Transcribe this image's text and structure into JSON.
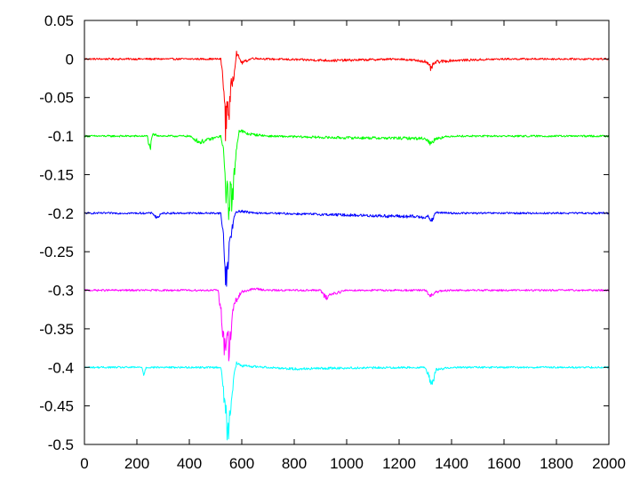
{
  "chart_data": {
    "type": "line",
    "title": "",
    "xlabel": "",
    "ylabel": "",
    "xlim": [
      0,
      2000
    ],
    "ylim": [
      -0.5,
      0.05
    ],
    "grid": false,
    "legend": "none",
    "xticks": [
      "0",
      "200",
      "400",
      "600",
      "800",
      "1000",
      "1200",
      "1400",
      "1600",
      "1800",
      "2000"
    ],
    "yticks": [
      "0.05",
      "0",
      "-0.05",
      "-0.1",
      "-0.15",
      "-0.2",
      "-0.25",
      "-0.3",
      "-0.35",
      "-0.4",
      "-0.45",
      "-0.5"
    ],
    "series": [
      {
        "color": "#ff0000",
        "baseline": 0,
        "x": [
          0,
          200,
          400,
          520,
          530,
          538,
          545,
          552,
          560,
          570,
          580,
          600,
          640,
          700,
          950,
          1200,
          1300,
          1320,
          1340,
          1400,
          1600,
          2000
        ],
        "values": [
          0,
          0,
          0,
          0,
          -0.03,
          -0.09,
          -0.055,
          -0.07,
          -0.035,
          -0.02,
          0.008,
          -0.005,
          0.001,
          0,
          -0.002,
          0,
          -0.003,
          -0.012,
          -0.004,
          -0.002,
          0,
          0
        ]
      },
      {
        "color": "#00ff00",
        "baseline": -0.1,
        "x": [
          0,
          240,
          250,
          260,
          300,
          400,
          440,
          520,
          530,
          540,
          550,
          558,
          565,
          575,
          590,
          620,
          700,
          950,
          1300,
          1320,
          1340,
          1400,
          1600,
          2000
        ],
        "values": [
          -0.1,
          -0.1,
          -0.118,
          -0.098,
          -0.1,
          -0.1,
          -0.108,
          -0.1,
          -0.12,
          -0.17,
          -0.19,
          -0.165,
          -0.19,
          -0.13,
          -0.092,
          -0.097,
          -0.1,
          -0.102,
          -0.103,
          -0.11,
          -0.103,
          -0.1,
          -0.1,
          -0.1
        ]
      },
      {
        "color": "#0000ff",
        "baseline": -0.2,
        "x": [
          0,
          260,
          275,
          300,
          500,
          520,
          530,
          540,
          550,
          560,
          575,
          590,
          650,
          700,
          950,
          1310,
          1325,
          1340,
          1400,
          1600,
          2000
        ],
        "values": [
          -0.2,
          -0.2,
          -0.206,
          -0.2,
          -0.2,
          -0.2,
          -0.23,
          -0.29,
          -0.25,
          -0.225,
          -0.2,
          -0.197,
          -0.2,
          -0.2,
          -0.202,
          -0.205,
          -0.21,
          -0.199,
          -0.2,
          -0.2,
          -0.2
        ]
      },
      {
        "color": "#ff00ff",
        "baseline": -0.3,
        "x": [
          0,
          400,
          510,
          525,
          535,
          545,
          552,
          560,
          570,
          585,
          600,
          650,
          700,
          900,
          920,
          940,
          1000,
          1300,
          1320,
          1340,
          1400,
          1600,
          2000
        ],
        "values": [
          -0.3,
          -0.3,
          -0.3,
          -0.34,
          -0.38,
          -0.35,
          -0.39,
          -0.345,
          -0.32,
          -0.31,
          -0.302,
          -0.298,
          -0.3,
          -0.3,
          -0.31,
          -0.305,
          -0.3,
          -0.3,
          -0.308,
          -0.302,
          -0.3,
          -0.3,
          -0.3
        ]
      },
      {
        "color": "#00ffff",
        "baseline": -0.4,
        "x": [
          0,
          220,
          226,
          235,
          400,
          520,
          530,
          540,
          548,
          555,
          562,
          570,
          580,
          600,
          700,
          800,
          950,
          1300,
          1315,
          1325,
          1340,
          1400,
          1600,
          2000
        ],
        "values": [
          -0.4,
          -0.4,
          -0.41,
          -0.4,
          -0.4,
          -0.4,
          -0.43,
          -0.46,
          -0.49,
          -0.45,
          -0.44,
          -0.41,
          -0.395,
          -0.398,
          -0.4,
          -0.402,
          -0.401,
          -0.4,
          -0.412,
          -0.425,
          -0.403,
          -0.4,
          -0.4,
          -0.4
        ]
      }
    ]
  }
}
